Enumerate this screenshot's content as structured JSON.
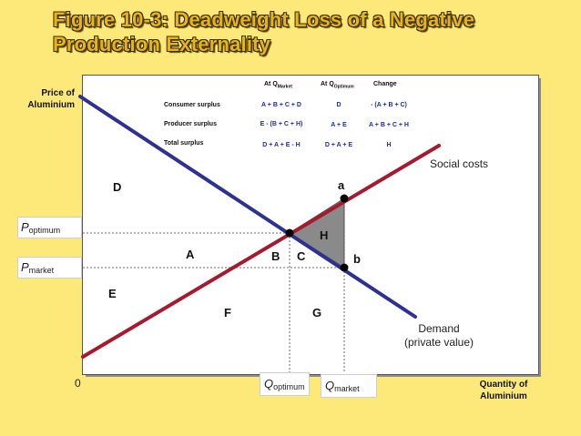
{
  "slide": {
    "title_line1": "Figure 10-3: Deadweight Loss of a Negative",
    "title_line2": "Production Externality"
  },
  "axes": {
    "y_label_line1": "Price of",
    "y_label_line2": "Aluminium",
    "x_label_line1": "Quantity of",
    "x_label_line2": "Aluminium",
    "origin": "0"
  },
  "price_labels": {
    "optimum_symbol": "P",
    "optimum_sub": "optimum",
    "market_symbol": "P",
    "market_sub": "market"
  },
  "quantity_labels": {
    "optimum_symbol": "Q",
    "optimum_sub": "optimum",
    "market_symbol": "Q",
    "market_sub": "market"
  },
  "curves": {
    "social_costs": "Social costs",
    "demand_line1": "Demand",
    "demand_line2": "(private value)"
  },
  "regions": {
    "D": "D",
    "A": "A",
    "E": "E",
    "F": "F",
    "B": "B",
    "C": "C",
    "H": "H",
    "G": "G"
  },
  "points": {
    "a": "a",
    "b": "b"
  },
  "table": {
    "headers": {
      "market": {
        "prefix": "At Q",
        "sub": "Market"
      },
      "optimum": {
        "prefix": "At Q",
        "sub": "Optimum"
      },
      "change": "Change"
    },
    "rows": [
      {
        "label": "Consumer surplus",
        "market": "A + B + C + D",
        "optimum": "D",
        "change": "- (A + B + C)"
      },
      {
        "label": "Producer surplus",
        "market": "E - (B + C + H)",
        "optimum": "A + E",
        "change": "A + B + C + H"
      },
      {
        "label": "Total surplus",
        "market": "D + A + E - H",
        "optimum": "D + A + E",
        "change": "H"
      }
    ]
  },
  "colors": {
    "background": "#fde97a",
    "title": "#e8b31a",
    "demand_curve": "#2e3192",
    "social_cost_curve": "#a6192e",
    "deadweight_area": "#8a8a8a",
    "table_values": "#1f2ea8"
  }
}
